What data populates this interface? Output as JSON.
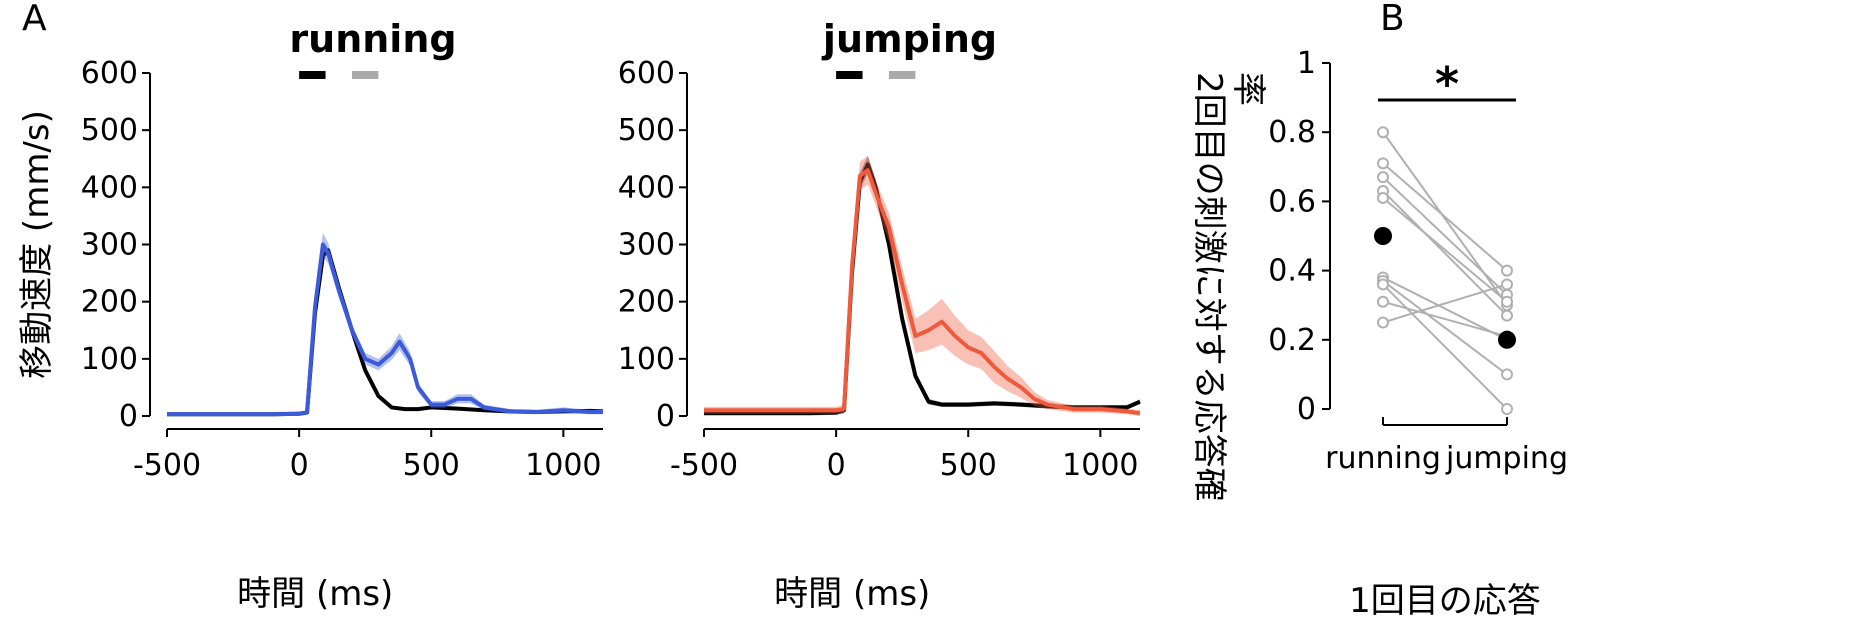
{
  "panel_a_letter": "A",
  "panel_b_letter": "B",
  "significance": "*",
  "chart_data": [
    {
      "type": "line",
      "title": "running",
      "xlabel": "時間 (ms)",
      "ylabel": "移動速度 (mm/s)",
      "xlim": [
        -500,
        1150
      ],
      "ylim": [
        0,
        600
      ],
      "xticks": [
        -500,
        0,
        500,
        1000
      ],
      "yticks": [
        0,
        100,
        200,
        300,
        400,
        500,
        600
      ],
      "stim_bars": [
        {
          "start": 0,
          "end": 100,
          "color": "#000000"
        },
        {
          "start": 200,
          "end": 300,
          "color": "#aaaaaa"
        }
      ],
      "series": [
        {
          "color": "#000000",
          "x": [
            -500,
            -300,
            -100,
            0,
            30,
            60,
            90,
            110,
            150,
            200,
            250,
            300,
            350,
            400,
            450,
            500,
            600,
            700,
            800,
            900,
            1000,
            1100,
            1150
          ],
          "y": [
            3,
            3,
            3,
            4,
            6,
            180,
            280,
            290,
            225,
            150,
            80,
            35,
            15,
            12,
            12,
            15,
            13,
            10,
            8,
            7,
            8,
            9,
            8
          ]
        },
        {
          "color": "#3b5bdb",
          "x": [
            -500,
            -300,
            -100,
            0,
            30,
            60,
            90,
            110,
            150,
            200,
            250,
            300,
            350,
            380,
            420,
            450,
            500,
            550,
            600,
            650,
            700,
            800,
            900,
            1000,
            1100,
            1150
          ],
          "y": [
            3,
            3,
            3,
            4,
            6,
            190,
            300,
            285,
            220,
            150,
            100,
            90,
            110,
            130,
            100,
            50,
            20,
            20,
            30,
            30,
            15,
            8,
            7,
            10,
            7,
            7
          ],
          "band": [
            4,
            4,
            4,
            4,
            4,
            15,
            20,
            18,
            12,
            10,
            10,
            10,
            12,
            15,
            12,
            8,
            6,
            6,
            8,
            8,
            5,
            4,
            4,
            5,
            4,
            4
          ]
        }
      ]
    },
    {
      "type": "line",
      "title": "jumping",
      "xlabel": "時間 (ms)",
      "ylabel": "",
      "xlim": [
        -500,
        1150
      ],
      "ylim": [
        0,
        600
      ],
      "xticks": [
        -500,
        0,
        500,
        1000
      ],
      "yticks": [
        0,
        100,
        200,
        300,
        400,
        500,
        600
      ],
      "stim_bars": [
        {
          "start": 0,
          "end": 100,
          "color": "#000000"
        },
        {
          "start": 200,
          "end": 300,
          "color": "#aaaaaa"
        }
      ],
      "series": [
        {
          "color": "#000000",
          "x": [
            -500,
            -300,
            -100,
            0,
            30,
            60,
            90,
            120,
            150,
            200,
            250,
            300,
            350,
            400,
            500,
            600,
            700,
            800,
            900,
            1000,
            1100,
            1150
          ],
          "y": [
            5,
            5,
            5,
            6,
            10,
            250,
            410,
            440,
            400,
            300,
            170,
            70,
            25,
            20,
            20,
            22,
            20,
            17,
            15,
            15,
            15,
            25
          ],
          "band": [
            4,
            4,
            4,
            4,
            5,
            12,
            15,
            15,
            14,
            12,
            10,
            8,
            5,
            4,
            4,
            4,
            4,
            4,
            4,
            4,
            4,
            4
          ]
        },
        {
          "color": "#ef5a3c",
          "x": [
            -500,
            -300,
            -100,
            0,
            30,
            60,
            90,
            120,
            150,
            200,
            250,
            300,
            350,
            400,
            450,
            500,
            550,
            600,
            650,
            700,
            750,
            800,
            900,
            1000,
            1100,
            1150
          ],
          "y": [
            10,
            10,
            10,
            10,
            12,
            260,
            420,
            430,
            390,
            330,
            230,
            140,
            150,
            165,
            140,
            120,
            110,
            85,
            65,
            50,
            30,
            20,
            12,
            12,
            8,
            5
          ],
          "band": [
            6,
            6,
            6,
            6,
            8,
            20,
            25,
            25,
            22,
            25,
            30,
            30,
            35,
            40,
            35,
            30,
            28,
            28,
            22,
            18,
            12,
            8,
            6,
            6,
            5,
            5
          ]
        }
      ]
    },
    {
      "type": "scatter",
      "xlabel": "1回目の応答",
      "ylabel": "2回目の刺激に対する応答確率",
      "categories": [
        "running",
        "jumping"
      ],
      "ylim": [
        0,
        1
      ],
      "yticks": [
        0,
        0.2,
        0.4,
        0.6,
        0.8,
        1
      ],
      "ytick_labels": [
        "0",
        "0.2",
        "0.4",
        "0.6",
        "0.8",
        "1"
      ],
      "pairs": [
        [
          0.8,
          0.3
        ],
        [
          0.71,
          0.4
        ],
        [
          0.67,
          0.33
        ],
        [
          0.63,
          0.27
        ],
        [
          0.61,
          0.31
        ],
        [
          0.38,
          0.2
        ],
        [
          0.37,
          0.1
        ],
        [
          0.36,
          0.0
        ],
        [
          0.31,
          0.21
        ],
        [
          0.25,
          0.36
        ]
      ],
      "means": [
        0.5,
        0.2
      ],
      "point_color": "#b0b0b0",
      "mean_color": "#000000",
      "significance_bar": {
        "from": "running",
        "to": "jumping",
        "y": 0.9,
        "label": "*"
      }
    }
  ]
}
